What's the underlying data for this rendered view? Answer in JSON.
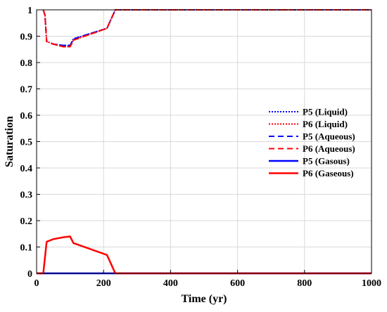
{
  "chart_data": {
    "type": "line",
    "xlabel": "Time (yr)",
    "ylabel": "Saturation",
    "xlim": [
      0,
      1000
    ],
    "ylim": [
      0,
      1
    ],
    "xticks": [
      0,
      200,
      400,
      600,
      800,
      1000
    ],
    "yticks": [
      0,
      0.1,
      0.2,
      0.3,
      0.4,
      0.5,
      0.6,
      0.7,
      0.8,
      0.9,
      1
    ],
    "grid": true,
    "legend_position": "right",
    "series": [
      {
        "name": "P5 (Liquid)",
        "color": "#0000ff",
        "style": "dotted",
        "x": [
          20,
          25,
          30,
          50,
          80,
          100,
          110,
          210,
          235,
          1000
        ],
        "y": [
          1,
          0.98,
          0.88,
          0.87,
          0.865,
          0.865,
          0.89,
          0.93,
          1,
          1
        ]
      },
      {
        "name": "P6 (Liquid)",
        "color": "#ff0000",
        "style": "dotted",
        "x": [
          20,
          25,
          30,
          50,
          80,
          100,
          110,
          210,
          235,
          1000
        ],
        "y": [
          1,
          0.98,
          0.88,
          0.87,
          0.86,
          0.86,
          0.885,
          0.93,
          1,
          1
        ]
      },
      {
        "name": "P5 (Aqueous)",
        "color": "#0000ff",
        "style": "dashed",
        "x": [
          20,
          25,
          30,
          50,
          80,
          100,
          110,
          210,
          235,
          1000
        ],
        "y": [
          1,
          0.98,
          0.88,
          0.87,
          0.865,
          0.865,
          0.89,
          0.93,
          1,
          1
        ]
      },
      {
        "name": "P6 (Aqueous)",
        "color": "#ff0000",
        "style": "dashed",
        "x": [
          20,
          25,
          30,
          50,
          80,
          100,
          110,
          210,
          235,
          1000
        ],
        "y": [
          1,
          0.98,
          0.88,
          0.87,
          0.86,
          0.86,
          0.885,
          0.93,
          1,
          1
        ]
      },
      {
        "name": "P5 (Gasous)",
        "color": "#0000ff",
        "style": "solid",
        "x": [
          0,
          1000
        ],
        "y": [
          0,
          0
        ]
      },
      {
        "name": "P6 (Gaseous)",
        "color": "#ff0000",
        "style": "solid",
        "x": [
          0,
          20,
          30,
          50,
          80,
          100,
          110,
          210,
          235,
          1000
        ],
        "y": [
          0,
          0,
          0.12,
          0.13,
          0.137,
          0.14,
          0.115,
          0.07,
          0,
          0
        ]
      }
    ]
  }
}
